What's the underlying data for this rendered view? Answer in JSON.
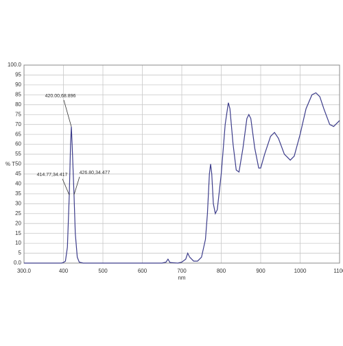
{
  "chart_data": {
    "type": "line",
    "x_label": "nm",
    "y_label": "% T",
    "x": [
      300,
      395,
      400,
      405,
      410,
      414.77,
      418,
      420,
      422,
      426.8,
      430,
      435,
      440,
      450,
      650,
      660,
      665,
      670,
      690,
      700,
      710,
      715,
      720,
      730,
      740,
      750,
      760,
      765,
      770,
      773,
      776,
      780,
      785,
      790,
      800,
      810,
      818,
      822,
      830,
      838,
      845,
      855,
      865,
      870,
      875,
      885,
      895,
      900,
      910,
      925,
      935,
      945,
      960,
      975,
      985,
      1000,
      1015,
      1030,
      1040,
      1050,
      1060,
      1075,
      1085,
      1095,
      1100
    ],
    "series": [
      {
        "color": "#3b3b8a",
        "values": [
          0,
          0,
          0.3,
          1,
          8,
          34.417,
          60,
          68.896,
          60,
          34.477,
          15,
          3,
          0.5,
          0,
          0,
          0.5,
          2,
          0.3,
          0,
          0.5,
          2,
          5,
          3,
          1,
          1,
          3,
          12,
          25,
          45,
          50,
          45,
          30,
          25,
          27,
          45,
          70,
          81,
          78,
          60,
          47,
          46,
          58,
          73,
          75,
          73,
          58,
          48,
          48,
          55,
          64,
          66,
          63,
          55,
          52,
          54,
          65,
          78,
          85,
          86,
          84,
          78,
          70,
          69,
          71,
          72
        ]
      }
    ],
    "xlim": [
      300,
      1100
    ],
    "xticks": [
      {
        "value": 300,
        "label": "300.0"
      },
      400,
      500,
      600,
      700,
      800,
      900,
      1000,
      1100
    ],
    "ylim": [
      0,
      100
    ],
    "yticks": [
      {
        "value": 0,
        "label": "0.0"
      },
      5,
      10,
      15,
      20,
      25,
      30,
      35,
      40,
      45,
      50,
      55,
      60,
      65,
      70,
      75,
      80,
      85,
      90,
      95,
      {
        "value": 100,
        "label": "100.0"
      }
    ],
    "grid": true,
    "annotations": [
      {
        "text": "420.00,68.896",
        "x": 420,
        "y": 68.896
      },
      {
        "text": "414.77,34.417",
        "x": 414.77,
        "y": 34.417
      },
      {
        "text": "426.80,34.477",
        "x": 426.8,
        "y": 34.477
      }
    ]
  }
}
